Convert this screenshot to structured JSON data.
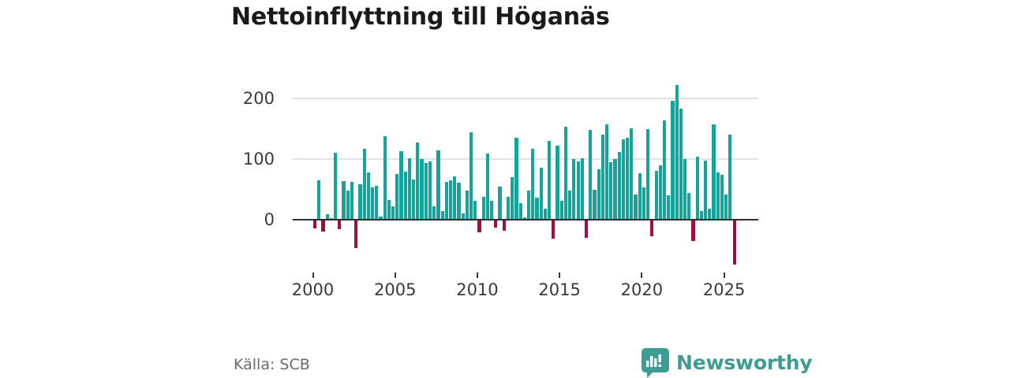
{
  "title": "Nettoinflyttning till Höganäs",
  "source": "Källa: SCB",
  "logo": {
    "text": "Newsworthy"
  },
  "colors": {
    "positive_bar": "#15a49a",
    "negative_bar": "#a30d45",
    "gridline": "#e2e2e2",
    "zero_axis": "#2e2e2e",
    "title_text": "#1a1a1a",
    "axis_text": "#3a3a3a",
    "source_text": "#6b6b6b",
    "logo_teal": "#3e9c95"
  },
  "chart_data": {
    "type": "bar",
    "title": "Nettoinflyttning till Höganäs",
    "frequency": "quarterly",
    "start_year": 2000,
    "start_quarter": 1,
    "values": [
      -13,
      64,
      -18,
      9,
      2,
      110,
      -14,
      63,
      47,
      62,
      -45,
      58,
      116,
      77,
      53,
      55,
      4,
      137,
      32,
      22,
      75,
      112,
      79,
      101,
      65,
      127,
      100,
      93,
      95,
      22,
      114,
      14,
      62,
      64,
      71,
      61,
      10,
      48,
      144,
      31,
      -19,
      37,
      108,
      30,
      -11,
      54,
      -16,
      37,
      70,
      134,
      27,
      3,
      47,
      116,
      36,
      85,
      18,
      129,
      -30,
      122,
      31,
      153,
      48,
      100,
      95,
      101,
      -28,
      148,
      49,
      82,
      140,
      157,
      94,
      99,
      111,
      132,
      134,
      150,
      41,
      76,
      52,
      149,
      -26,
      80,
      89,
      163,
      39,
      196,
      221,
      183,
      100,
      44,
      -34,
      103,
      13,
      97,
      17,
      156,
      77,
      74,
      41,
      139,
      -72
    ],
    "y_ticks": [
      0,
      100,
      200
    ],
    "x_ticks": [
      2000,
      2005,
      2010,
      2015,
      2020,
      2025
    ],
    "ylim": [
      -80,
      230
    ],
    "grid": "horizontal-at-100-and-200",
    "legend": "none",
    "positive_color": "#15a49a",
    "negative_color": "#a30d45"
  }
}
